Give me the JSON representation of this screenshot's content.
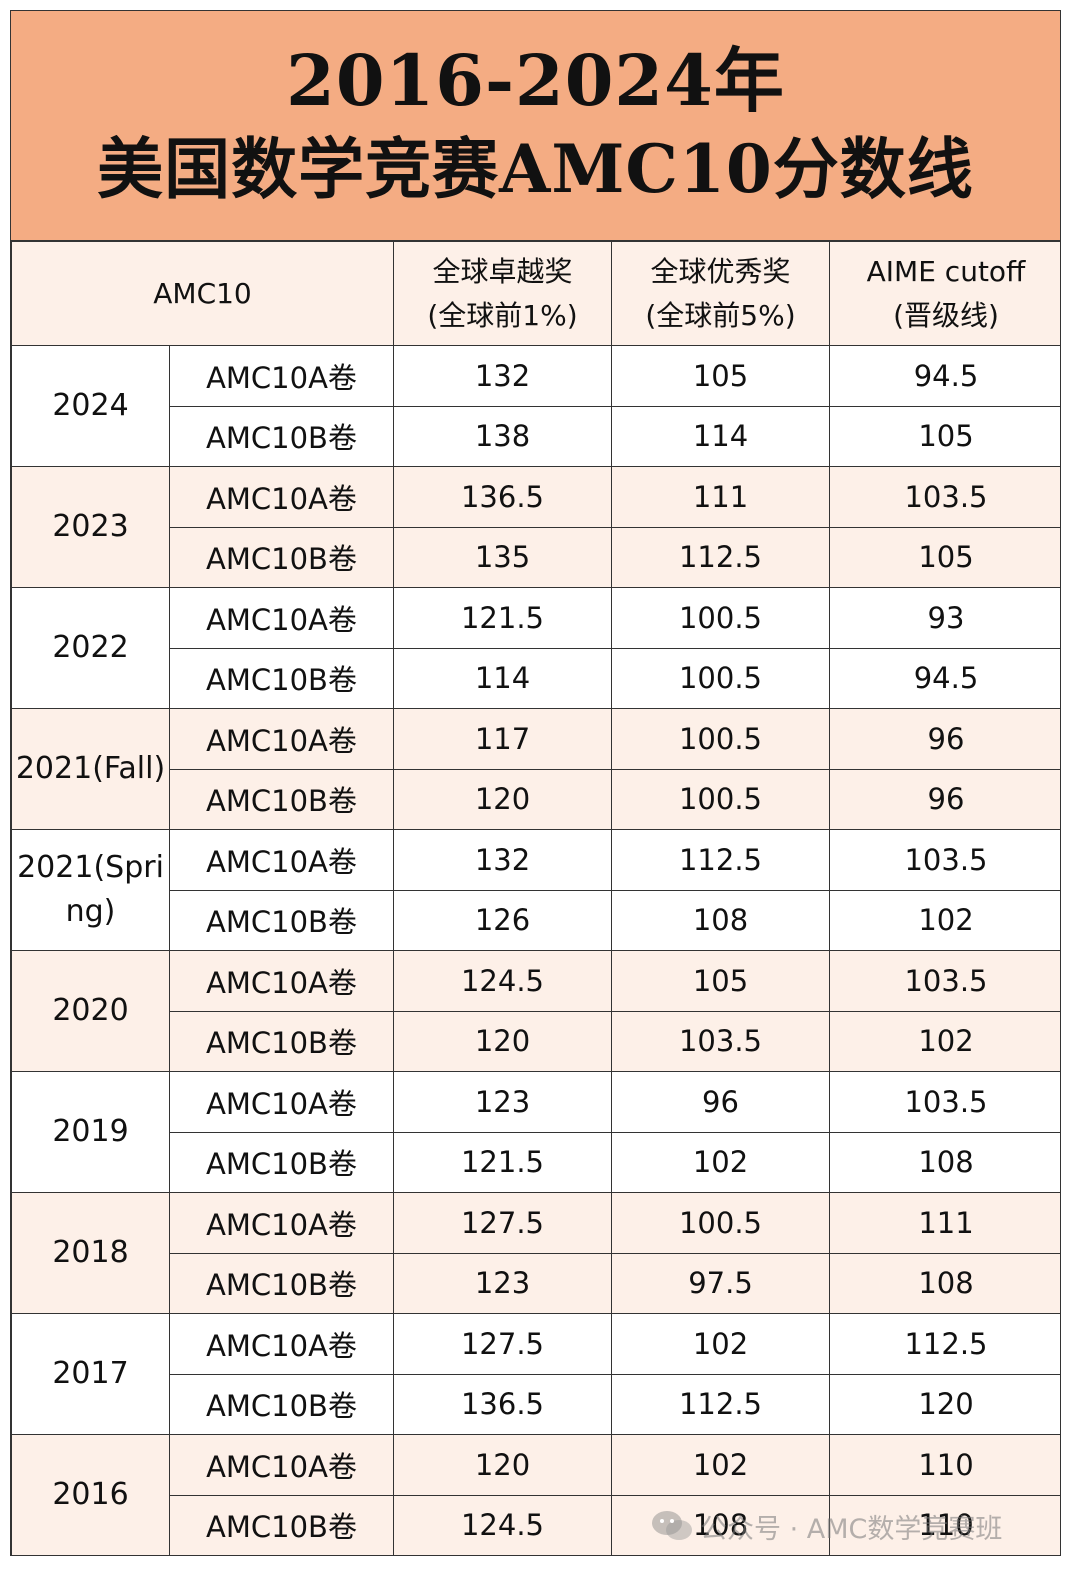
{
  "title": {
    "line1": "2016-2024年",
    "line2": "美国数学竞赛AMC10分数线"
  },
  "header": {
    "col1": "AMC10",
    "col2_line1": "全球卓越奖",
    "col2_line2": "(全球前1%)",
    "col3_line1": "全球优秀奖",
    "col3_line2": "(全球前5%)",
    "col4_line1": "AIME cutoff",
    "col4_line2": "(晋级线)"
  },
  "years": [
    {
      "year": "2024",
      "rows": [
        {
          "exam": "AMC10A卷",
          "distinction": "132",
          "honor": "105",
          "aime": "94.5"
        },
        {
          "exam": "AMC10B卷",
          "distinction": "138",
          "honor": "114",
          "aime": "105"
        }
      ]
    },
    {
      "year": "2023",
      "rows": [
        {
          "exam": "AMC10A卷",
          "distinction": "136.5",
          "honor": "111",
          "aime": "103.5"
        },
        {
          "exam": "AMC10B卷",
          "distinction": "135",
          "honor": "112.5",
          "aime": "105"
        }
      ]
    },
    {
      "year": "2022",
      "rows": [
        {
          "exam": "AMC10A卷",
          "distinction": "121.5",
          "honor": "100.5",
          "aime": "93"
        },
        {
          "exam": "AMC10B卷",
          "distinction": "114",
          "honor": "100.5",
          "aime": "94.5"
        }
      ]
    },
    {
      "year": "2021(Fall)",
      "rows": [
        {
          "exam": "AMC10A卷",
          "distinction": "117",
          "honor": "100.5",
          "aime": "96"
        },
        {
          "exam": "AMC10B卷",
          "distinction": "120",
          "honor": "100.5",
          "aime": "96"
        }
      ]
    },
    {
      "year": "2021(Spring)",
      "rows": [
        {
          "exam": "AMC10A卷",
          "distinction": "132",
          "honor": "112.5",
          "aime": "103.5"
        },
        {
          "exam": "AMC10B卷",
          "distinction": "126",
          "honor": "108",
          "aime": "102"
        }
      ]
    },
    {
      "year": "2020",
      "rows": [
        {
          "exam": "AMC10A卷",
          "distinction": "124.5",
          "honor": "105",
          "aime": "103.5"
        },
        {
          "exam": "AMC10B卷",
          "distinction": "120",
          "honor": "103.5",
          "aime": "102"
        }
      ]
    },
    {
      "year": "2019",
      "rows": [
        {
          "exam": "AMC10A卷",
          "distinction": "123",
          "honor": "96",
          "aime": "103.5"
        },
        {
          "exam": "AMC10B卷",
          "distinction": "121.5",
          "honor": "102",
          "aime": "108"
        }
      ]
    },
    {
      "year": "2018",
      "rows": [
        {
          "exam": "AMC10A卷",
          "distinction": "127.5",
          "honor": "100.5",
          "aime": "111"
        },
        {
          "exam": "AMC10B卷",
          "distinction": "123",
          "honor": "97.5",
          "aime": "108"
        }
      ]
    },
    {
      "year": "2017",
      "rows": [
        {
          "exam": "AMC10A卷",
          "distinction": "127.5",
          "honor": "102",
          "aime": "112.5"
        },
        {
          "exam": "AMC10B卷",
          "distinction": "136.5",
          "honor": "112.5",
          "aime": "120"
        }
      ]
    },
    {
      "year": "2016",
      "rows": [
        {
          "exam": "AMC10A卷",
          "distinction": "120",
          "honor": "102",
          "aime": "110"
        },
        {
          "exam": "AMC10B卷",
          "distinction": "124.5",
          "honor": "108",
          "aime": "110"
        }
      ]
    }
  ],
  "watermark": {
    "text": "公众号 · AMC数学竞赛班",
    "icon": "wechat-icon"
  }
}
